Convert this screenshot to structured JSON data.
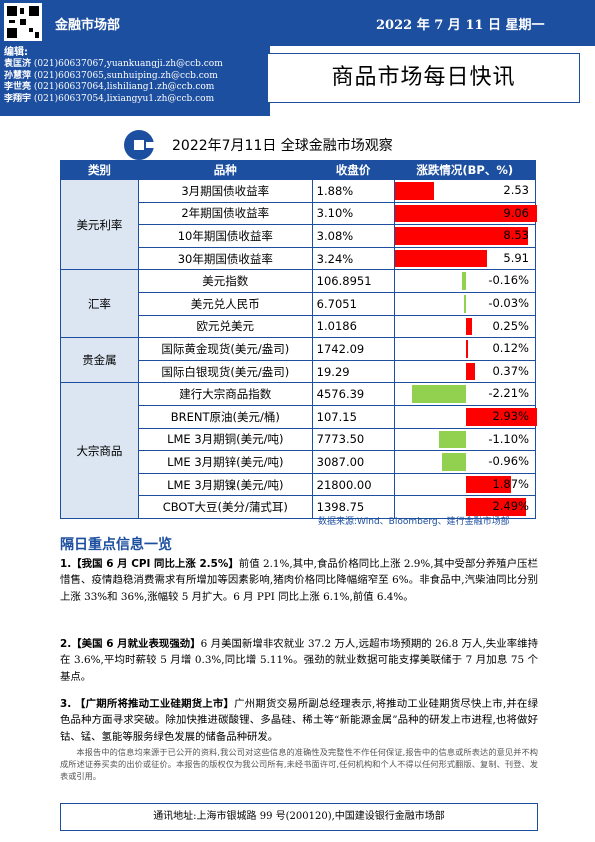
{
  "header": {
    "department": "金融市场部",
    "date": "2022 年 7 月 11 日  星期一"
  },
  "contacts": {
    "heading": "编辑:",
    "people": [
      {
        "name": "袁匡济",
        "phone": "(021)60637067,",
        "email": "yuankuangji.zh@ccb.com"
      },
      {
        "name": "孙慧萍",
        "phone": "(021)60637065,",
        "email": "sunhuiping.zh@ccb.com"
      },
      {
        "name": "李世亮",
        "phone": "(021)60637064,",
        "email": "lishiliang1.zh@ccb.com"
      },
      {
        "name": "李翔宇",
        "phone": "(021)60637054,",
        "email": "lixiangyu1.zh@ccb.com"
      }
    ]
  },
  "report_title": "商品市场每日快讯",
  "table": {
    "title": "2022年7月11日 全球金融市场观察",
    "headers": [
      "类别",
      "品种",
      "收盘价",
      "涨跌情况(BP、%)"
    ],
    "colors": {
      "up": "#ff0000",
      "down": "#92d050"
    },
    "groups": [
      {
        "category": "美元利率",
        "rows": [
          {
            "name": "3月期国债收益率",
            "close": "1.88%",
            "change": "2.53",
            "value": 2.53,
            "max": 9.06
          },
          {
            "name": "2年期国债收益率",
            "close": "3.10%",
            "change": "9.06",
            "value": 9.06,
            "max": 9.06
          },
          {
            "name": "10年期国债收益率",
            "close": "3.08%",
            "change": "8.53",
            "value": 8.53,
            "max": 9.06
          },
          {
            "name": "30年期国债收益率",
            "close": "3.24%",
            "change": "5.91",
            "value": 5.91,
            "max": 9.06
          }
        ]
      },
      {
        "category": "汇率",
        "rows": [
          {
            "name": "美元指数",
            "close": "106.8951",
            "change": "-0.16%",
            "value": -0.16,
            "max": 2.93
          },
          {
            "name": "美元兑人民币",
            "close": "6.7051",
            "change": "-0.03%",
            "value": -0.03,
            "max": 2.93
          },
          {
            "name": "欧元兑美元",
            "close": "1.0186",
            "change": "0.25%",
            "value": 0.25,
            "max": 2.93
          }
        ]
      },
      {
        "category": "贵金属",
        "rows": [
          {
            "name": "国际黄金现货(美元/盎司)",
            "close": "1742.09",
            "change": "0.12%",
            "value": 0.12,
            "max": 2.93
          },
          {
            "name": "国际白银现货(美元/盎司)",
            "close": "19.29",
            "change": "0.37%",
            "value": 0.37,
            "max": 2.93
          }
        ]
      },
      {
        "category": "大宗商品",
        "rows": [
          {
            "name": "建行大宗商品指数",
            "close": "4576.39",
            "change": "-2.21%",
            "value": -2.21,
            "max": 2.93
          },
          {
            "name": "BRENT原油(美元/桶)",
            "close": "107.15",
            "change": "2.93%",
            "value": 2.93,
            "max": 2.93
          },
          {
            "name": "LME 3月期铜(美元/吨)",
            "close": "7773.50",
            "change": "-1.10%",
            "value": -1.1,
            "max": 2.93
          },
          {
            "name": "LME 3月期锌(美元/吨)",
            "close": "3087.00",
            "change": "-0.96%",
            "value": -0.96,
            "max": 2.93
          },
          {
            "name": "LME 3月期镍(美元/吨)",
            "close": "21800.00",
            "change": "1.87%",
            "value": 1.87,
            "max": 2.93
          },
          {
            "name": "CBOT大豆(美分/蒲式耳)",
            "close": "1398.75",
            "change": "2.49%",
            "value": 2.49,
            "max": 2.93
          }
        ]
      }
    ],
    "source": "数据来源:Wind、Bloomberg、建行金融市场部"
  },
  "section_title": "隔日重点信息一览",
  "news": [
    {
      "heading": "1.【我国 6 月 CPI 同比上涨 2.5%】",
      "body": "前值 2.1%,其中,食品价格同比上涨 2.9%,其中受部分养殖户压栏惜售、疫情趋稳消费需求有所增加等因素影响,猪肉价格同比降幅缩窄至 6%。非食品中,汽柴油同比分别上涨 33%和 36%,涨幅较 5 月扩大。6 月 PPI 同比上涨 6.1%,前值 6.4%。"
    },
    {
      "heading": "2.【美国 6 月就业表现强劲】",
      "body": "6 月美国新增非农就业 37.2 万人,远超市场预期的 26.8 万人,失业率维持在 3.6%,平均时薪较 5 月增 0.3%,同比增 5.11%。强劲的就业数据可能支撑美联储于 7 月加息 75 个基点。"
    },
    {
      "heading": "3. 【广期所将推动工业硅期货上市】",
      "body": "广州期货交易所副总经理表示,将推动工业硅期货尽快上市,并在绿色品种方面寻求突破。除加快推进碳酸锂、多晶硅、稀土等“新能源金属”品种的研发上市进程,也将做好钴、锰、氢能等服务绿色发展的储备品种研发。"
    }
  ],
  "disclaimer": "本报告中的信息均来源于已公开的资料,我公司对这些信息的准确性及完整性不作任何保证,报告中的信息或所表达的意见并不构成所述证券买卖的出价或征价。本报告的版权仅为我公司所有,未经书面许可,任何机构和个人不得以任何形式翻版、复制、刊登、发表或引用。",
  "footer": "通讯地址:上海市银城路 99 号(200120),中国建设银行金融市场部"
}
